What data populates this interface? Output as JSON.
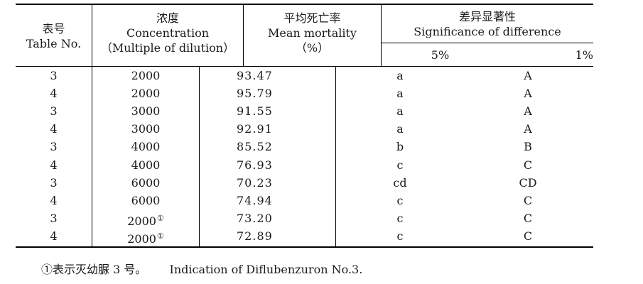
{
  "table": {
    "headers": {
      "table_no": [
        "表号",
        "Table No."
      ],
      "concentration": [
        "浓度",
        "Concentration",
        "（Multiple of dilution）"
      ],
      "mortality": [
        "平均死亡率",
        "Mean mortality",
        "（%）"
      ],
      "significance": [
        "差异显著性",
        "Significance of difference"
      ],
      "sig_5": "5%",
      "sig_1": "1%"
    },
    "rows": [
      {
        "table_no": "3",
        "concentration": "2000",
        "note": "",
        "mortality": "93.47",
        "sig5": "a",
        "sig1": "A"
      },
      {
        "table_no": "4",
        "concentration": "2000",
        "note": "",
        "mortality": "95.79",
        "sig5": "a",
        "sig1": "A"
      },
      {
        "table_no": "3",
        "concentration": "3000",
        "note": "",
        "mortality": "91.55",
        "sig5": "a",
        "sig1": "A"
      },
      {
        "table_no": "4",
        "concentration": "3000",
        "note": "",
        "mortality": "92.91",
        "sig5": "a",
        "sig1": "A"
      },
      {
        "table_no": "3",
        "concentration": "4000",
        "note": "",
        "mortality": "85.52",
        "sig5": "b",
        "sig1": "B"
      },
      {
        "table_no": "4",
        "concentration": "4000",
        "note": "",
        "mortality": "76.93",
        "sig5": "c",
        "sig1": "C"
      },
      {
        "table_no": "3",
        "concentration": "6000",
        "note": "",
        "mortality": "70.23",
        "sig5": "cd",
        "sig1": "CD"
      },
      {
        "table_no": "4",
        "concentration": "6000",
        "note": "",
        "mortality": "74.94",
        "sig5": "c",
        "sig1": "C"
      },
      {
        "table_no": "3",
        "concentration": "2000",
        "note": "①",
        "mortality": "73.20",
        "sig5": "c",
        "sig1": "C"
      },
      {
        "table_no": "4",
        "concentration": "2000",
        "note": "①",
        "mortality": "72.89",
        "sig5": "c",
        "sig1": "C"
      }
    ]
  },
  "footnote": {
    "chinese": "①表示灭幼脲 3 号。",
    "english": "Indication of Diflubenzuron No.3."
  }
}
